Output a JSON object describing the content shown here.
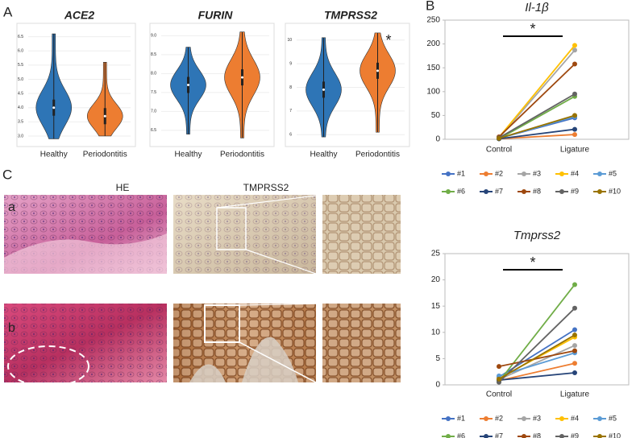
{
  "panel_labels": [
    "A",
    "B",
    "C",
    "a",
    "b"
  ],
  "column_headers": [
    "HE",
    "TMPRSS2"
  ],
  "chart_data": [
    {
      "type": "violin",
      "title": "ACE2",
      "categories": [
        "Healthy",
        "Periodontitis"
      ],
      "colors": [
        "#2e75b6",
        "#ed7d31"
      ],
      "min": [
        2.9,
        3.0
      ],
      "median": [
        4.0,
        3.7
      ],
      "max": [
        6.6,
        5.6
      ],
      "ylim": [
        2.8,
        6.8
      ],
      "yticks": [
        {
          "value": 3.0,
          "label": "3.0"
        },
        3.5,
        {
          "value": 4.0,
          "label": "4.0"
        },
        4.5,
        {
          "value": 5.0,
          "label": "5.0"
        },
        5.5,
        {
          "value": 6.0,
          "label": "6.0"
        },
        6.5
      ],
      "grid": true
    },
    {
      "type": "violin",
      "title": "FURIN",
      "categories": [
        "Healthy",
        "Periodontitis"
      ],
      "colors": [
        "#2e75b6",
        "#ed7d31"
      ],
      "min": [
        6.4,
        6.3
      ],
      "median": [
        7.7,
        7.9
      ],
      "max": [
        8.7,
        9.1
      ],
      "ylim": [
        6.2,
        9.2
      ],
      "yticks": [
        6.5,
        {
          "value": 7.0,
          "label": "7.0"
        },
        7.5,
        {
          "value": 8.0,
          "label": "8.0"
        },
        8.5,
        {
          "value": 9.0,
          "label": "9.0"
        }
      ],
      "grid": true
    },
    {
      "type": "violin",
      "title": "TMPRSS2",
      "categories": [
        "Healthy",
        "Periodontitis"
      ],
      "colors": [
        "#2e75b6",
        "#ed7d31"
      ],
      "min": [
        5.9,
        6.1
      ],
      "median": [
        7.9,
        8.7
      ],
      "max": [
        10.1,
        10.3
      ],
      "ylim": [
        5.7,
        10.5
      ],
      "yticks": [
        6,
        7,
        8,
        9,
        10
      ],
      "grid": true,
      "annotation": "*"
    },
    {
      "type": "line",
      "title": "Il-1β",
      "categories": [
        "Control",
        "Ligature"
      ],
      "ylim": [
        0,
        250
      ],
      "yticks": [
        0,
        50,
        100,
        150,
        200,
        250
      ],
      "annotation": "*",
      "series": [
        {
          "name": "#1",
          "color": "#4472c4",
          "values": [
            2,
            45
          ]
        },
        {
          "name": "#2",
          "color": "#ed7d31",
          "values": [
            1,
            10
          ]
        },
        {
          "name": "#3",
          "color": "#a5a5a5",
          "values": [
            3,
            187
          ]
        },
        {
          "name": "#4",
          "color": "#ffc000",
          "values": [
            4,
            197
          ]
        },
        {
          "name": "#5",
          "color": "#5b9bd5",
          "values": [
            2,
            48
          ]
        },
        {
          "name": "#6",
          "color": "#70ad47",
          "values": [
            1,
            90
          ]
        },
        {
          "name": "#7",
          "color": "#264478",
          "values": [
            1,
            21
          ]
        },
        {
          "name": "#8",
          "color": "#9e480e",
          "values": [
            5,
            158
          ]
        },
        {
          "name": "#9",
          "color": "#636363",
          "values": [
            3,
            95
          ]
        },
        {
          "name": "#10",
          "color": "#997300",
          "values": [
            2,
            50
          ]
        }
      ]
    },
    {
      "type": "line",
      "title": "Tmprss2",
      "categories": [
        "Control",
        "Ligature"
      ],
      "ylim": [
        0,
        25
      ],
      "yticks": [
        0,
        5,
        10,
        15,
        20,
        25
      ],
      "annotation": "*",
      "series": [
        {
          "name": "#1",
          "color": "#4472c4",
          "values": [
            1.5,
            10.5
          ]
        },
        {
          "name": "#2",
          "color": "#ed7d31",
          "values": [
            0.8,
            4.1
          ]
        },
        {
          "name": "#3",
          "color": "#a5a5a5",
          "values": [
            1.0,
            7.5
          ]
        },
        {
          "name": "#4",
          "color": "#ffc000",
          "values": [
            1.2,
            9.1
          ]
        },
        {
          "name": "#5",
          "color": "#5b9bd5",
          "values": [
            1.7,
            6.1
          ]
        },
        {
          "name": "#6",
          "color": "#70ad47",
          "values": [
            0.6,
            19.1
          ]
        },
        {
          "name": "#7",
          "color": "#264478",
          "values": [
            0.9,
            2.3
          ]
        },
        {
          "name": "#8",
          "color": "#9e480e",
          "values": [
            3.5,
            6.5
          ]
        },
        {
          "name": "#9",
          "color": "#636363",
          "values": [
            0.5,
            14.6
          ]
        },
        {
          "name": "#10",
          "color": "#997300",
          "values": [
            1.1,
            9.5
          ]
        }
      ]
    }
  ]
}
